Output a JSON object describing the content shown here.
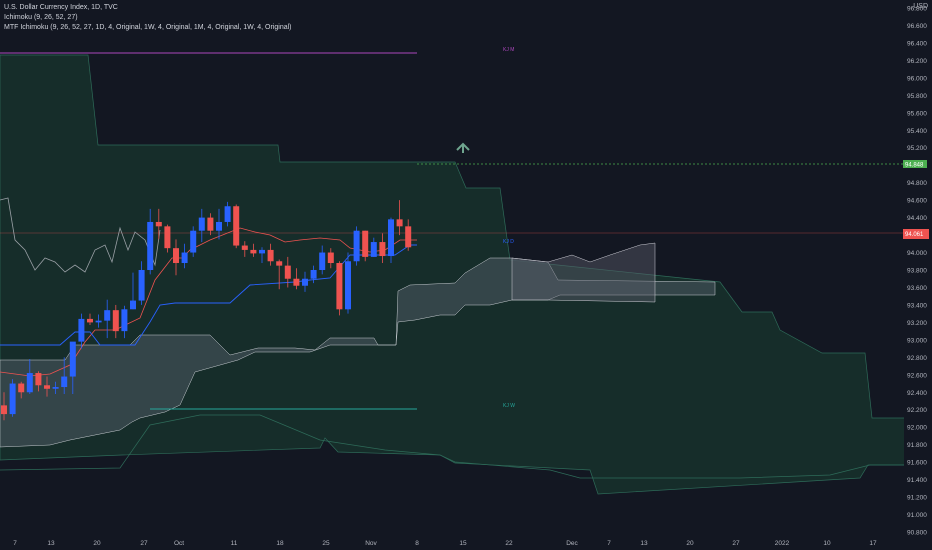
{
  "legend": {
    "symbol_line": "U.S. Dollar Currency Index, 1D, TVC",
    "indicator1": "Ichimoku (9, 26, 52, 27)",
    "indicator2": "MTF Ichimoku (9, 26, 52, 27, 1D, 4, Original, 1W, 4, Original, 1M, 4, Original, 1W, 4, Original)"
  },
  "currency": "USD",
  "price_axis": {
    "ticks": [
      "96.800",
      "96.600",
      "96.400",
      "96.200",
      "96.000",
      "95.800",
      "95.600",
      "95.400",
      "95.200",
      "95.000",
      "94.800",
      "94.600",
      "94.400",
      "94.200",
      "94.000",
      "93.800",
      "93.600",
      "93.400",
      "93.200",
      "93.000",
      "92.800",
      "92.600",
      "92.400",
      "92.200",
      "92.000",
      "91.800",
      "91.600",
      "91.400",
      "91.200",
      "91.000",
      "90.800"
    ],
    "last_price": "94.061",
    "kijun_price": "94.848"
  },
  "time_axis": {
    "ticks": [
      "7",
      "13",
      "20",
      "27",
      "Oct",
      "11",
      "18",
      "25",
      "Nov",
      "8",
      "15",
      "22",
      "Dec",
      "7",
      "13",
      "20",
      "27",
      "2022",
      "10",
      "17"
    ]
  },
  "annotations": {
    "kj_m": "KJ M",
    "kj_d": "KJ D",
    "kj_w": "KJ W"
  },
  "colors": {
    "background": "#131722",
    "up": "#2962ff",
    "down": "#ef5350",
    "kijun": "#2962ff",
    "tenkan": "#ef5350",
    "monthly_kijun": "#ab47bc",
    "weekly_kijun": "#26a69a",
    "cloud_green": "#1b3a33",
    "cloud_grey": "#3a4650",
    "arrow": "#6fa58f"
  },
  "icons": {
    "up_arrow": "up-arrow-icon"
  },
  "chart_data": {
    "type": "candlestick",
    "symbol": "U.S. Dollar Currency Index",
    "interval": "1D",
    "ylim": [
      90.7,
      96.9
    ],
    "candles": [
      {
        "date": "2021-09-07",
        "o": 92.25,
        "h": 92.4,
        "l": 92.08,
        "c": 92.15
      },
      {
        "date": "2021-09-08",
        "o": 92.15,
        "h": 92.55,
        "l": 92.12,
        "c": 92.5
      },
      {
        "date": "2021-09-09",
        "o": 92.5,
        "h": 92.52,
        "l": 92.33,
        "c": 92.4
      },
      {
        "date": "2021-09-10",
        "o": 92.4,
        "h": 92.78,
        "l": 92.38,
        "c": 92.62
      },
      {
        "date": "2021-09-13",
        "o": 92.62,
        "h": 92.64,
        "l": 92.41,
        "c": 92.48
      },
      {
        "date": "2021-09-14",
        "o": 92.48,
        "h": 92.58,
        "l": 92.35,
        "c": 92.44
      },
      {
        "date": "2021-09-15",
        "o": 92.44,
        "h": 92.52,
        "l": 92.38,
        "c": 92.46
      },
      {
        "date": "2021-09-16",
        "o": 92.46,
        "h": 92.8,
        "l": 92.38,
        "c": 92.58
      },
      {
        "date": "2021-09-17",
        "o": 92.58,
        "h": 92.96,
        "l": 92.38,
        "c": 92.98
      },
      {
        "date": "2021-09-20",
        "o": 92.98,
        "h": 93.3,
        "l": 92.9,
        "c": 93.24
      },
      {
        "date": "2021-09-21",
        "o": 93.24,
        "h": 93.3,
        "l": 93.17,
        "c": 93.2
      },
      {
        "date": "2021-09-22",
        "o": 93.2,
        "h": 93.29,
        "l": 93.14,
        "c": 93.22
      },
      {
        "date": "2021-09-23",
        "o": 93.22,
        "h": 93.46,
        "l": 93.02,
        "c": 93.34
      },
      {
        "date": "2021-09-24",
        "o": 93.34,
        "h": 93.4,
        "l": 93.02,
        "c": 93.1
      },
      {
        "date": "2021-09-27",
        "o": 93.1,
        "h": 93.39,
        "l": 93.02,
        "c": 93.35
      },
      {
        "date": "2021-09-28",
        "o": 93.35,
        "h": 93.77,
        "l": 93.35,
        "c": 93.45
      },
      {
        "date": "2021-09-29",
        "o": 93.45,
        "h": 93.9,
        "l": 93.4,
        "c": 93.8
      },
      {
        "date": "2021-09-30",
        "o": 93.8,
        "h": 94.5,
        "l": 93.75,
        "c": 94.35
      },
      {
        "date": "2021-10-01",
        "o": 94.35,
        "h": 94.5,
        "l": 94.15,
        "c": 94.3
      },
      {
        "date": "2021-10-04",
        "o": 94.3,
        "h": 94.32,
        "l": 94.0,
        "c": 94.05
      },
      {
        "date": "2021-10-05",
        "o": 94.05,
        "h": 94.15,
        "l": 93.74,
        "c": 93.88
      },
      {
        "date": "2021-10-06",
        "o": 93.88,
        "h": 94.1,
        "l": 93.82,
        "c": 94.0
      },
      {
        "date": "2021-10-07",
        "o": 94.0,
        "h": 94.3,
        "l": 93.95,
        "c": 94.25
      },
      {
        "date": "2021-10-08",
        "o": 94.25,
        "h": 94.5,
        "l": 94.12,
        "c": 94.4
      },
      {
        "date": "2021-10-11",
        "o": 94.4,
        "h": 94.45,
        "l": 94.2,
        "c": 94.25
      },
      {
        "date": "2021-10-12",
        "o": 94.25,
        "h": 94.5,
        "l": 94.15,
        "c": 94.35
      },
      {
        "date": "2021-10-13",
        "o": 94.35,
        "h": 94.58,
        "l": 94.3,
        "c": 94.53
      },
      {
        "date": "2021-10-14",
        "o": 94.53,
        "h": 94.55,
        "l": 94.05,
        "c": 94.08
      },
      {
        "date": "2021-10-15",
        "o": 94.08,
        "h": 94.13,
        "l": 93.95,
        "c": 94.03
      },
      {
        "date": "2021-10-18",
        "o": 94.03,
        "h": 94.1,
        "l": 93.95,
        "c": 93.99
      },
      {
        "date": "2021-10-19",
        "o": 93.99,
        "h": 94.06,
        "l": 93.88,
        "c": 94.03
      },
      {
        "date": "2021-10-20",
        "o": 94.03,
        "h": 94.1,
        "l": 93.85,
        "c": 93.9
      },
      {
        "date": "2021-10-21",
        "o": 93.9,
        "h": 93.92,
        "l": 93.58,
        "c": 93.85
      },
      {
        "date": "2021-10-22",
        "o": 93.85,
        "h": 93.95,
        "l": 93.6,
        "c": 93.7
      },
      {
        "date": "2021-10-25",
        "o": 93.7,
        "h": 93.82,
        "l": 93.58,
        "c": 93.62
      },
      {
        "date": "2021-10-26",
        "o": 93.62,
        "h": 93.78,
        "l": 93.55,
        "c": 93.7
      },
      {
        "date": "2021-10-27",
        "o": 93.7,
        "h": 93.85,
        "l": 93.65,
        "c": 93.8
      },
      {
        "date": "2021-10-28",
        "o": 93.8,
        "h": 94.08,
        "l": 93.75,
        "c": 94.0
      },
      {
        "date": "2021-10-29",
        "o": 94.0,
        "h": 94.05,
        "l": 93.82,
        "c": 93.88
      },
      {
        "date": "2021-11-01",
        "o": 93.88,
        "h": 93.9,
        "l": 93.28,
        "c": 93.35
      },
      {
        "date": "2021-11-02",
        "o": 93.35,
        "h": 94.0,
        "l": 93.3,
        "c": 93.9
      },
      {
        "date": "2021-11-03",
        "o": 93.9,
        "h": 94.3,
        "l": 93.85,
        "c": 94.25
      },
      {
        "date": "2021-11-04",
        "o": 94.25,
        "h": 94.25,
        "l": 93.9,
        "c": 93.95
      },
      {
        "date": "2021-11-05",
        "o": 93.95,
        "h": 94.17,
        "l": 93.95,
        "c": 94.12
      },
      {
        "date": "2021-11-08",
        "o": 94.12,
        "h": 94.22,
        "l": 93.88,
        "c": 93.96
      },
      {
        "date": "2021-11-09",
        "o": 93.96,
        "h": 94.4,
        "l": 93.88,
        "c": 94.38
      },
      {
        "date": "2021-11-10",
        "o": 94.38,
        "h": 94.6,
        "l": 94.2,
        "c": 94.3
      },
      {
        "date": "2021-11-11",
        "o": 94.3,
        "h": 94.38,
        "l": 94.02,
        "c": 94.06
      }
    ]
  }
}
